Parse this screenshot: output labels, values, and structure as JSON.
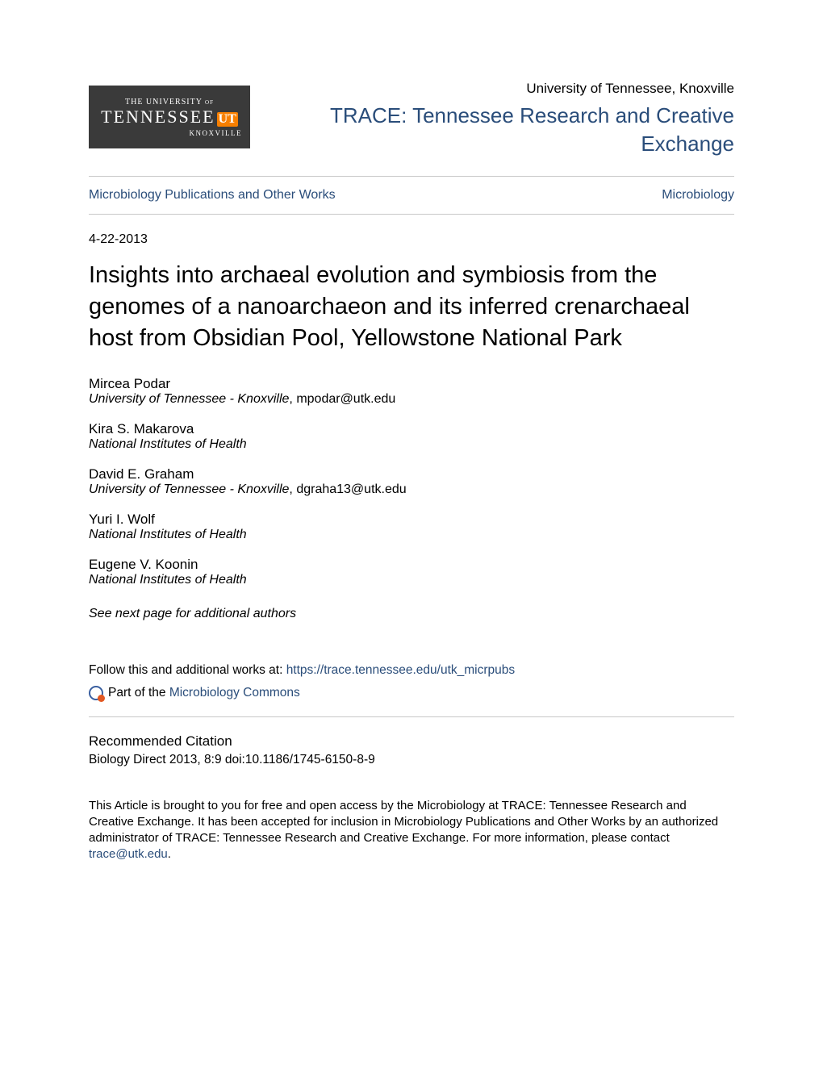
{
  "colors": {
    "link": "#2a4d7a",
    "text": "#000000",
    "rule": "#c8c8c8",
    "logo_bg": "#3a3a3a",
    "logo_accent": "#f77f00",
    "background": "#ffffff"
  },
  "typography": {
    "body_family": "Arial, Helvetica, sans-serif",
    "title_size_pt": 22,
    "repo_title_size_pt": 20,
    "body_size_pt": 12
  },
  "header": {
    "logo": {
      "top": "THE UNIVERSITY of",
      "main": "TENNESSEE",
      "swoosh": "UT",
      "bottom": "KNOXVILLE"
    },
    "institution": "University of Tennessee, Knoxville",
    "repo_title": "TRACE: Tennessee Research and Creative Exchange"
  },
  "breadcrumb": {
    "left": "Microbiology Publications and Other Works",
    "right": "Microbiology"
  },
  "date": "4-22-2013",
  "title": "Insights into archaeal evolution and symbiosis from the genomes of a nanoarchaeon and its inferred crenarchaeal host from Obsidian Pool, Yellowstone National Park",
  "authors": [
    {
      "name": "Mircea Podar",
      "affil": "University of Tennessee - Knoxville",
      "email": "mpodar@utk.edu"
    },
    {
      "name": "Kira S. Makarova",
      "affil": "National Institutes of Health",
      "email": ""
    },
    {
      "name": "David E. Graham",
      "affil": "University of Tennessee - Knoxville",
      "email": "dgraha13@utk.edu"
    },
    {
      "name": "Yuri I. Wolf",
      "affil": "National Institutes of Health",
      "email": ""
    },
    {
      "name": "Eugene V. Koonin",
      "affil": "National Institutes of Health",
      "email": ""
    }
  ],
  "see_next": "See next page for additional authors",
  "follow": {
    "prefix": "Follow this and additional works at: ",
    "url": "https://trace.tennessee.edu/utk_micrpubs"
  },
  "partof": {
    "prefix": "Part of the ",
    "link": "Microbiology Commons"
  },
  "recommended": {
    "heading": "Recommended Citation",
    "text": "Biology Direct 2013, 8:9 doi:10.1186/1745-6150-8-9"
  },
  "footer": {
    "text": "This Article is brought to you for free and open access by the Microbiology at TRACE: Tennessee Research and Creative Exchange. It has been accepted for inclusion in Microbiology Publications and Other Works by an authorized administrator of TRACE: Tennessee Research and Creative Exchange. For more information, please contact ",
    "email": "trace@utk.edu",
    "suffix": "."
  }
}
